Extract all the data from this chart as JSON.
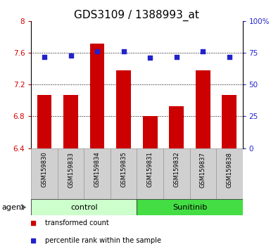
{
  "title": "GDS3109 / 1388993_at",
  "samples": [
    "GSM159830",
    "GSM159833",
    "GSM159834",
    "GSM159835",
    "GSM159831",
    "GSM159832",
    "GSM159837",
    "GSM159838"
  ],
  "bar_values": [
    7.07,
    7.07,
    7.72,
    7.38,
    6.8,
    6.93,
    7.38,
    7.07
  ],
  "percentile_values": [
    72,
    73,
    76,
    76,
    71,
    72,
    76,
    72
  ],
  "ylim_left": [
    6.4,
    8.0
  ],
  "yticks_left": [
    6.4,
    6.8,
    7.2,
    7.6,
    8.0
  ],
  "ytick_labels_left": [
    "6.4",
    "6.8",
    "7.2",
    "7.6",
    "8"
  ],
  "ylim_right": [
    0,
    100
  ],
  "yticks_right": [
    0,
    25,
    50,
    75,
    100
  ],
  "ytick_labels_right": [
    "0",
    "25",
    "50",
    "75",
    "100%"
  ],
  "bar_color": "#cc0000",
  "dot_color": "#2222cc",
  "bar_width": 0.55,
  "grid_lines": [
    6.8,
    7.2,
    7.6
  ],
  "groups": [
    {
      "label": "control",
      "indices": [
        0,
        1,
        2,
        3
      ],
      "color": "#ccffcc"
    },
    {
      "label": "Sunitinib",
      "indices": [
        4,
        5,
        6,
        7
      ],
      "color": "#44dd44"
    }
  ],
  "agent_label": "agent",
  "legend_items": [
    {
      "label": "transformed count",
      "color": "#cc0000"
    },
    {
      "label": "percentile rank within the sample",
      "color": "#2222cc"
    }
  ],
  "title_fontsize": 11,
  "tick_fontsize": 7.5,
  "sample_fontsize": 6,
  "group_fontsize": 8,
  "legend_fontsize": 7,
  "axis_label_color_left": "#cc0000",
  "axis_label_color_right": "#2222cc",
  "sample_box_color": "#d0d0d0",
  "sample_box_edge": "#999999",
  "bg_color": "#ffffff"
}
